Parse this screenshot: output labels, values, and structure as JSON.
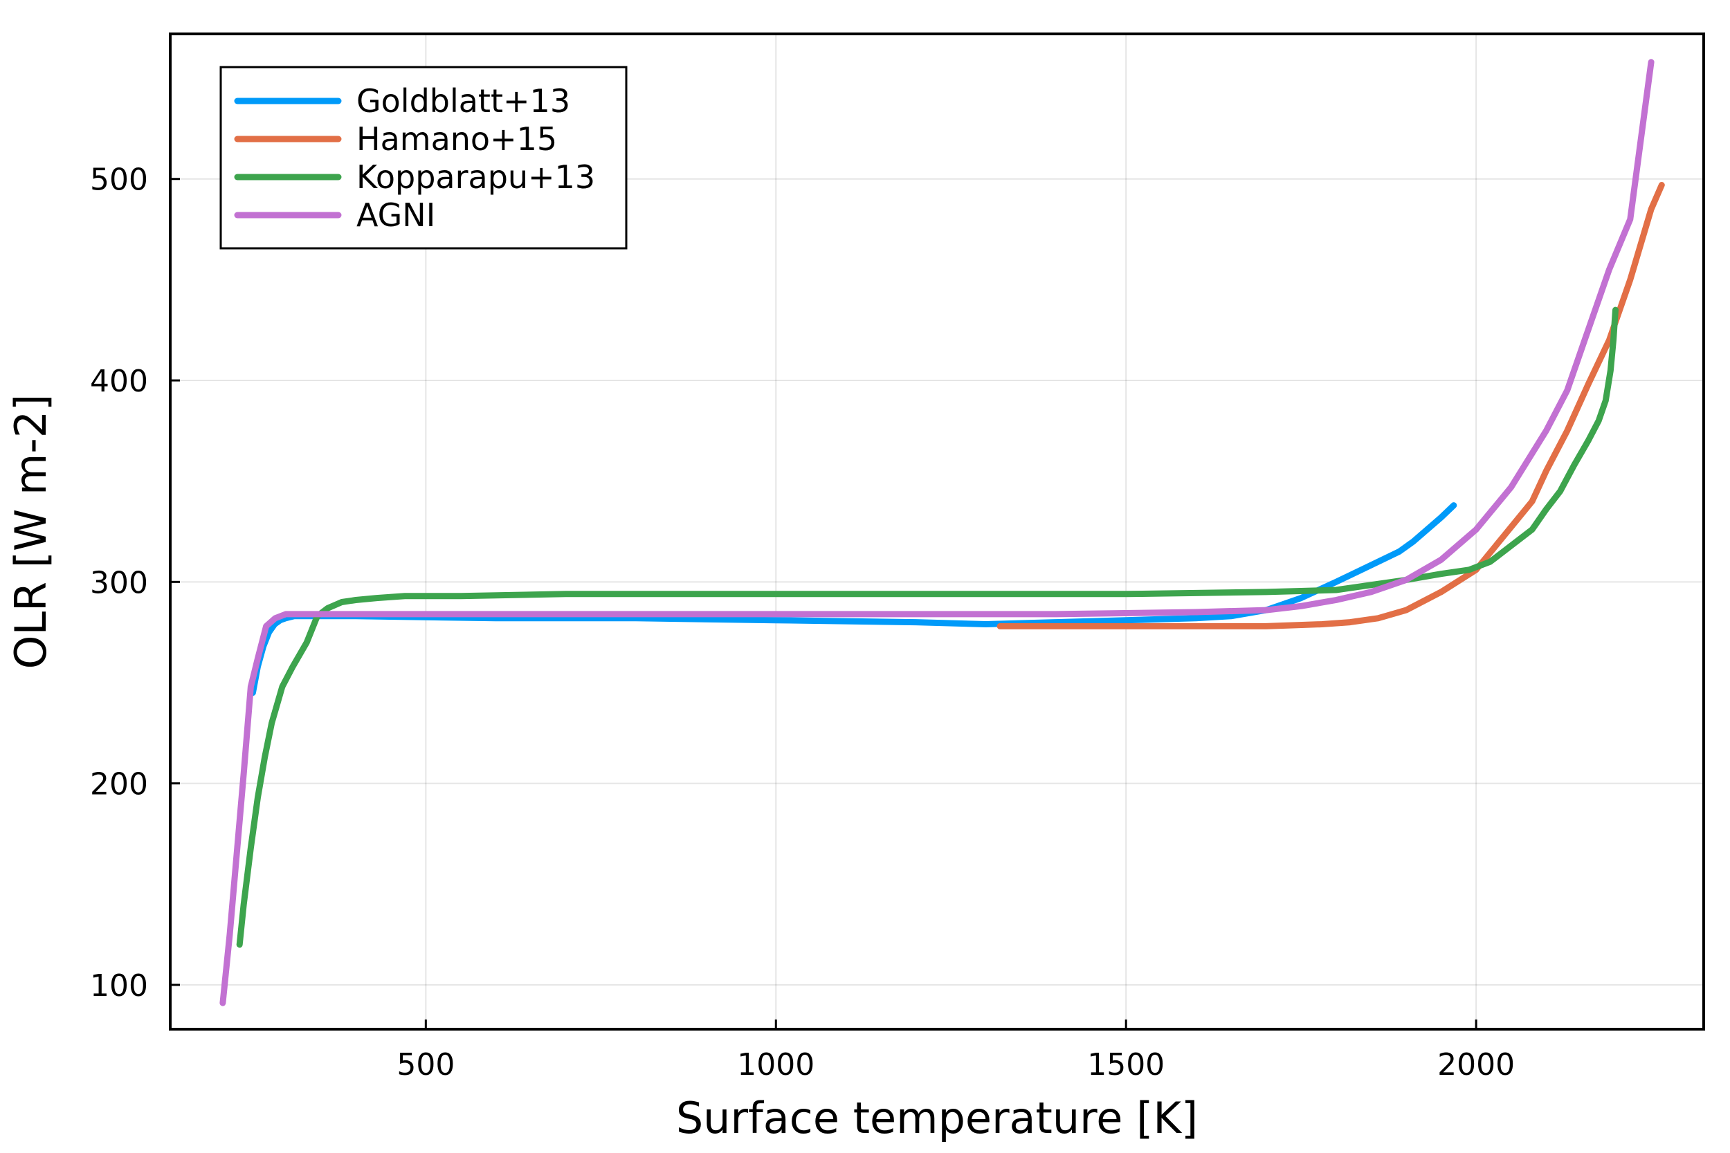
{
  "chart_data": {
    "type": "line",
    "title": "",
    "xlabel": "Surface temperature [K]",
    "ylabel": "OLR [W m-2]",
    "xlim": [
      135,
      2325
    ],
    "ylim": [
      78,
      572
    ],
    "xticks": [
      500,
      1000,
      1500,
      2000
    ],
    "yticks": [
      100,
      200,
      300,
      400,
      500
    ],
    "grid": true,
    "legend_position": "top-left",
    "series": [
      {
        "name": "Goldblatt+13",
        "color": "#009af9",
        "x": [
          253,
          260,
          268,
          276,
          284,
          292,
          300,
          312,
          330,
          400,
          600,
          800,
          1000,
          1200,
          1300,
          1400,
          1500,
          1600,
          1650,
          1700,
          1750,
          1800,
          1830,
          1860,
          1890,
          1910,
          1930,
          1950,
          1968
        ],
        "y": [
          245,
          258,
          268,
          275,
          279,
          281,
          282,
          283,
          283,
          283,
          282,
          282,
          281,
          280,
          279,
          280,
          281,
          282,
          283,
          286,
          292,
          300,
          305,
          310,
          315,
          320,
          326,
          332,
          338
        ]
      },
      {
        "name": "Hamano+15",
        "color": "#e26f46",
        "x": [
          1320,
          1400,
          1500,
          1600,
          1700,
          1780,
          1820,
          1860,
          1900,
          1950,
          2000,
          2040,
          2080,
          2100,
          2130,
          2160,
          2190,
          2220,
          2250,
          2265
        ],
        "y": [
          278,
          278,
          278,
          278,
          278,
          279,
          280,
          282,
          286,
          295,
          306,
          323,
          340,
          355,
          375,
          398,
          420,
          450,
          485,
          497
        ]
      },
      {
        "name": "Kopparapu+13",
        "color": "#3da44d",
        "x": [
          234,
          240,
          250,
          260,
          270,
          280,
          295,
          310,
          330,
          345,
          360,
          380,
          400,
          430,
          470,
          550,
          700,
          900,
          1100,
          1300,
          1500,
          1700,
          1800,
          1900,
          1950,
          1990,
          2020,
          2050,
          2080,
          2100,
          2120,
          2140,
          2160,
          2175,
          2185,
          2192,
          2196,
          2199
        ],
        "y": [
          120,
          140,
          168,
          193,
          213,
          230,
          248,
          258,
          270,
          283,
          287,
          290,
          291,
          292,
          293,
          293,
          294,
          294,
          294,
          294,
          294,
          295,
          296,
          301,
          304,
          306,
          310,
          318,
          326,
          336,
          345,
          358,
          370,
          380,
          390,
          405,
          420,
          435
        ]
      },
      {
        "name": "AGNI",
        "color": "#c271d2",
        "x": [
          210,
          220,
          230,
          240,
          250,
          260,
          272,
          285,
          300,
          320,
          400,
          600,
          800,
          1000,
          1200,
          1400,
          1600,
          1700,
          1750,
          1800,
          1850,
          1900,
          1950,
          2000,
          2050,
          2100,
          2130,
          2160,
          2190,
          2220,
          2250
        ],
        "y": [
          91,
          125,
          165,
          205,
          248,
          262,
          278,
          282,
          284,
          284,
          284,
          284,
          284,
          284,
          284,
          284,
          285,
          286,
          288,
          291,
          295,
          301,
          311,
          326,
          347,
          375,
          395,
          425,
          455,
          480,
          558
        ]
      }
    ]
  }
}
